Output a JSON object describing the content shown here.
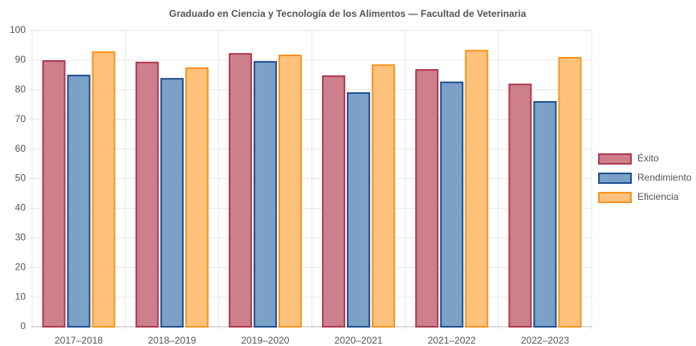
{
  "chart_data": {
    "type": "bar",
    "title": "Graduado en Ciencia y Tecnología de los Alimentos — Facultad de Veterinaria",
    "categories": [
      "2017–2018",
      "2018–2019",
      "2019–2020",
      "2020–2021",
      "2021–2022",
      "2022–2023"
    ],
    "series": [
      {
        "name": "Éxito",
        "color": "#cd7f8b",
        "border_color": "#b03a52",
        "values": [
          89.7,
          89.2,
          92.1,
          84.6,
          86.7,
          81.8
        ]
      },
      {
        "name": "Rendimiento",
        "color": "#7ba1c7",
        "border_color": "#1f4f8f",
        "values": [
          84.8,
          83.7,
          89.4,
          78.9,
          82.5,
          75.9
        ]
      },
      {
        "name": "Eficiencia",
        "color": "#ffc27d",
        "border_color": "#f7941d",
        "values": [
          92.7,
          87.3,
          91.6,
          88.3,
          93.2,
          90.8
        ]
      }
    ],
    "ylim": [
      0,
      100
    ],
    "yticks": [
      0,
      10,
      20,
      30,
      40,
      50,
      60,
      70,
      80,
      90,
      100
    ],
    "grid": true,
    "legend": "right"
  }
}
